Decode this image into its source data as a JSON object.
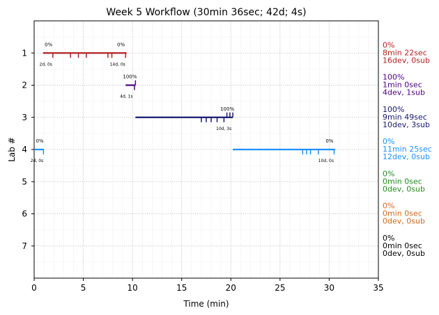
{
  "chart_data": {
    "type": "timeline",
    "title": "Week 5 Workflow (30min 36sec; 42d; 4s)",
    "xlabel": "Time (min)",
    "ylabel": "Lab #",
    "xlim": [
      0,
      35
    ],
    "ylim": [
      8,
      0
    ],
    "x_ticks": [
      "0",
      "5",
      "10",
      "15",
      "20",
      "25",
      "30",
      "35"
    ],
    "x_tick_values": [
      0,
      5,
      10,
      15,
      20,
      25,
      30,
      35
    ],
    "y_ticks": [
      "1",
      "2",
      "3",
      "4",
      "5",
      "6",
      "7"
    ],
    "y_tick_values": [
      1,
      2,
      3,
      4,
      5,
      6,
      7
    ],
    "grid": true,
    "labs": [
      {
        "lab": 1,
        "color": "#b22222",
        "start": 0.9,
        "end": 9.4,
        "ticks_down": [
          1.9,
          3.7,
          4.5,
          5.3,
          7.5,
          7.9,
          9.3
        ],
        "ticks_up": [],
        "start_pct": "0%",
        "start_counts": "2d, 0s",
        "end_pct": "0%",
        "end_counts": "14d, 0s",
        "side": [
          "0%",
          "8min 22sec",
          "16dev, 0sub"
        ]
      },
      {
        "lab": 2,
        "color": "#4b0082",
        "start": 9.3,
        "end": 10.3,
        "ticks_down": [
          10.2
        ],
        "ticks_up": [
          10.3
        ],
        "start_pct": "",
        "start_counts": "",
        "end_pct": "100%",
        "end_counts": "4d, 1s",
        "side": [
          "100%",
          "1min 0sec",
          "4dev, 1sub"
        ]
      },
      {
        "lab": 3,
        "color": "#191970",
        "start": 10.3,
        "end": 20.2,
        "ticks_down": [
          17.0,
          17.5,
          18.0,
          18.6,
          19.3
        ],
        "ticks_up": [
          19.6,
          19.9,
          20.2
        ],
        "start_pct": "",
        "start_counts": "",
        "end_pct": "100%",
        "end_counts": "10d, 3s",
        "side": [
          "100%",
          "9min 49sec",
          "10dev, 3sub"
        ]
      },
      {
        "lab": 4,
        "color": "#1e90ff",
        "start": 0.0,
        "end": 1.0,
        "ticks_down": [
          0.95
        ],
        "ticks_up": [],
        "start_pct": "0%",
        "start_counts": "2d, 0s",
        "end_pct": "",
        "end_counts": "",
        "side": [
          "0%",
          "11min 25sec",
          "12dev, 0sub"
        ]
      },
      {
        "lab": 4,
        "color": "#1e90ff",
        "start": 20.2,
        "end": 30.6,
        "ticks_down": [
          27.3,
          27.7,
          28.1,
          28.9,
          30.5
        ],
        "ticks_up": [],
        "start_pct": "",
        "start_counts": "",
        "end_pct": "0%",
        "end_counts": "10d, 0s",
        "side": null
      },
      {
        "lab": 5,
        "color": "#228b22",
        "start": null,
        "end": null,
        "ticks_down": [],
        "ticks_up": [],
        "start_pct": "",
        "start_counts": "",
        "end_pct": "",
        "end_counts": "",
        "side": [
          "0%",
          "0min 0sec",
          "0dev, 0sub"
        ]
      },
      {
        "lab": 6,
        "color": "#d2691e",
        "start": null,
        "end": null,
        "ticks_down": [],
        "ticks_up": [],
        "start_pct": "",
        "start_counts": "",
        "end_pct": "",
        "end_counts": "",
        "side": [
          "0%",
          "0min 0sec",
          "0dev, 0sub"
        ]
      },
      {
        "lab": 7,
        "color": "#000000",
        "start": null,
        "end": null,
        "ticks_down": [],
        "ticks_up": [],
        "start_pct": "",
        "start_counts": "",
        "end_pct": "",
        "end_counts": "",
        "side": [
          "0%",
          "0min 0sec",
          "0dev, 0sub"
        ]
      }
    ]
  }
}
